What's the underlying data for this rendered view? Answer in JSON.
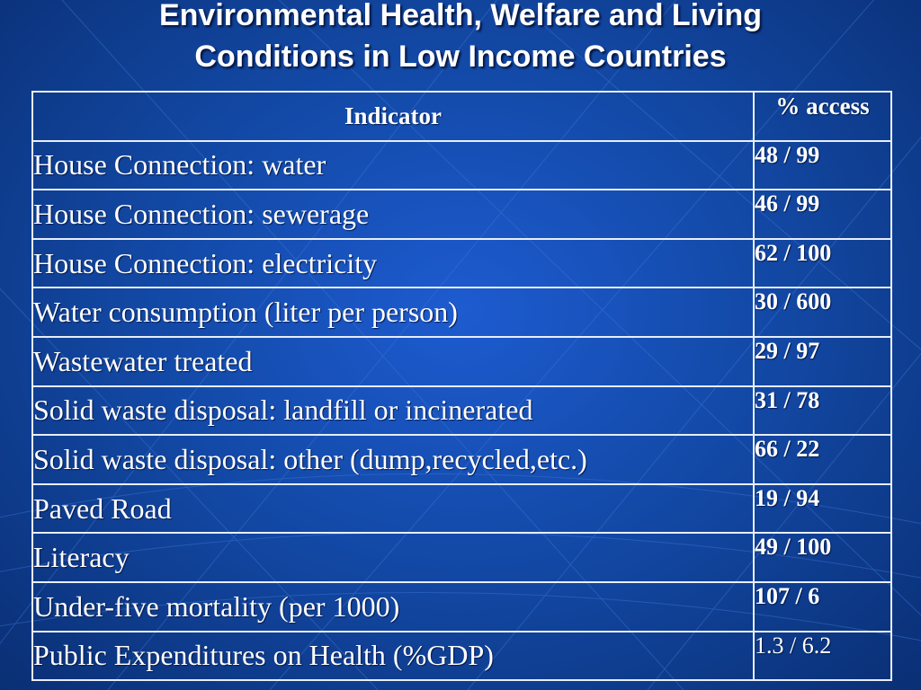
{
  "slide": {
    "title_line1": "Environmental Health, Welfare and Living",
    "title_line2": "Conditions in Low Income Countries"
  },
  "table": {
    "headers": [
      "Indicator",
      "% access"
    ],
    "rows": [
      {
        "indicator": "House Connection: water",
        "access": "48 / 99"
      },
      {
        "indicator": "House Connection: sewerage",
        "access": "46 / 99"
      },
      {
        "indicator": "House Connection: electricity",
        "access": "62 / 100"
      },
      {
        "indicator": "Water consumption (liter per person)",
        "access": "30 / 600"
      },
      {
        "indicator": "Wastewater treated",
        "access": "29 / 97"
      },
      {
        "indicator": "Solid waste disposal: landfill or incinerated",
        "access": "31 / 78"
      },
      {
        "indicator": "Solid waste disposal: other (dump,recycled,etc.)",
        "access": "66 / 22"
      },
      {
        "indicator": "Paved Road",
        "access": "19 / 94"
      },
      {
        "indicator": "Literacy",
        "access": "49 / 100"
      },
      {
        "indicator": "Under-five mortality (per 1000)",
        "access": "107 / 6"
      },
      {
        "indicator": "Public Expenditures on Health (%GDP)",
        "access": "1.3 / 6.2"
      }
    ]
  },
  "colors": {
    "background": "#134aa8",
    "text": "#ffffff",
    "border": "#e8eef8"
  }
}
